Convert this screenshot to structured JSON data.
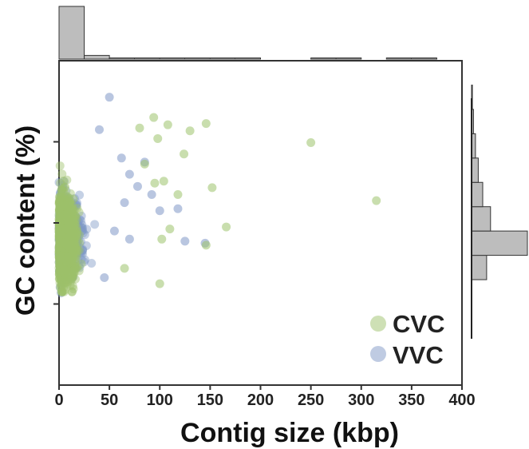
{
  "chart_data": {
    "type": "scatter",
    "xlabel": "Contig size (kbp)",
    "ylabel": "GC content (%)",
    "xlim": [
      0,
      400
    ],
    "xticks": [
      "0",
      "50",
      "100",
      "150",
      "200",
      "250",
      "300",
      "350",
      "400"
    ],
    "ylim": [
      10,
      90
    ],
    "yticks_unlabeled": [
      30,
      50,
      70
    ],
    "grid": false,
    "legend_position": "bottom-right",
    "series": [
      {
        "name": "CVC",
        "color": "#9dc26b",
        "points": [
          [
            250,
            69.8
          ],
          [
            315,
            55.5
          ],
          [
            152,
            58.7
          ],
          [
            124,
            67
          ],
          [
            146,
            74.5
          ],
          [
            130,
            72.7
          ],
          [
            108,
            74.2
          ],
          [
            94,
            76
          ],
          [
            98,
            70.8
          ],
          [
            85,
            64.5
          ],
          [
            166,
            49
          ],
          [
            146,
            44.5
          ],
          [
            118,
            57
          ],
          [
            110,
            48.5
          ],
          [
            102,
            46
          ],
          [
            100,
            35
          ],
          [
            65,
            38.8
          ],
          [
            80,
            73.4
          ],
          [
            104,
            60.3
          ],
          [
            95,
            59.8
          ]
        ],
        "dense_cluster": {
          "x_range": [
            0,
            60
          ],
          "y_range": [
            33,
            84
          ]
        }
      },
      {
        "name": "VVC",
        "color": "#7f98c6",
        "points": [
          [
            125,
            45.5
          ],
          [
            145,
            45
          ],
          [
            118,
            53.5
          ],
          [
            100,
            53
          ],
          [
            92,
            57
          ],
          [
            85,
            65
          ],
          [
            78,
            59
          ],
          [
            70,
            62
          ],
          [
            70,
            46
          ],
          [
            45,
            36.5
          ],
          [
            62,
            66
          ],
          [
            50,
            81
          ],
          [
            40,
            73
          ],
          [
            65,
            55
          ],
          [
            55,
            48
          ]
        ],
        "dense_cluster": {
          "x_range": [
            0,
            70
          ],
          "y_range": [
            32,
            84
          ]
        }
      }
    ],
    "top_histogram": {
      "x_range": [
        0,
        400
      ],
      "bin_width": 25,
      "relative_heights": [
        1.0,
        0.07,
        0.012,
        0.006,
        0.003,
        0.003,
        0.002,
        0.002,
        0,
        0,
        0.002,
        0.002,
        0,
        0.002,
        0.002,
        0
      ]
    },
    "right_histogram": {
      "bins": [
        {
          "y0": 36,
          "y1": 42,
          "value": 0.27
        },
        {
          "y0": 42,
          "y1": 48,
          "value": 1.0
        },
        {
          "y0": 48,
          "y1": 54,
          "value": 0.34
        },
        {
          "y0": 54,
          "y1": 60,
          "value": 0.2
        },
        {
          "y0": 60,
          "y1": 66,
          "value": 0.12
        },
        {
          "y0": 66,
          "y1": 72,
          "value": 0.07
        },
        {
          "y0": 72,
          "y1": 78,
          "value": 0.035
        },
        {
          "y0": 78,
          "y1": 84,
          "value": 0.015
        }
      ]
    }
  }
}
